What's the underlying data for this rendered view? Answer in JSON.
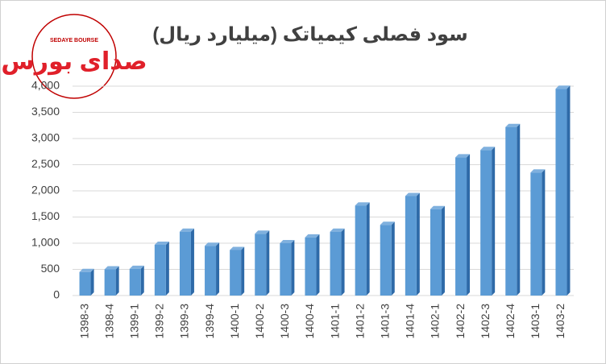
{
  "chart_data": {
    "type": "bar",
    "title": "سود فصلی کیمیاتک (میلیارد ریال)",
    "logo_text": "SEDAYE BOURSE",
    "logo_mark": "صدای بورس",
    "categories": [
      "1398-3",
      "1398-4",
      "1399-1",
      "1399-2",
      "1399-3",
      "1399-4",
      "1400-1",
      "1400-2",
      "1400-3",
      "1400-4",
      "1401-1",
      "1401-2",
      "1401-3",
      "1401-4",
      "1402-1",
      "1402-2",
      "1402-3",
      "1402-4",
      "1403-1",
      "1403-2"
    ],
    "values": [
      450,
      500,
      510,
      970,
      1220,
      950,
      870,
      1180,
      1000,
      1110,
      1220,
      1720,
      1350,
      1900,
      1650,
      2640,
      2780,
      3220,
      2350,
      3950
    ],
    "color": "#5b9bd5",
    "ylim": [
      0,
      4000
    ],
    "yticks": [
      0,
      500,
      {
        "value": 1000,
        "label": "1,000"
      },
      {
        "value": 1500,
        "label": "1,500"
      },
      {
        "value": 2000,
        "label": "2,000"
      },
      {
        "value": 2500,
        "label": "2,500"
      },
      {
        "value": 3000,
        "label": "3,000"
      },
      {
        "value": 3500,
        "label": "3,500"
      },
      {
        "value": 4000,
        "label": "4,000"
      }
    ],
    "grid": true
  }
}
